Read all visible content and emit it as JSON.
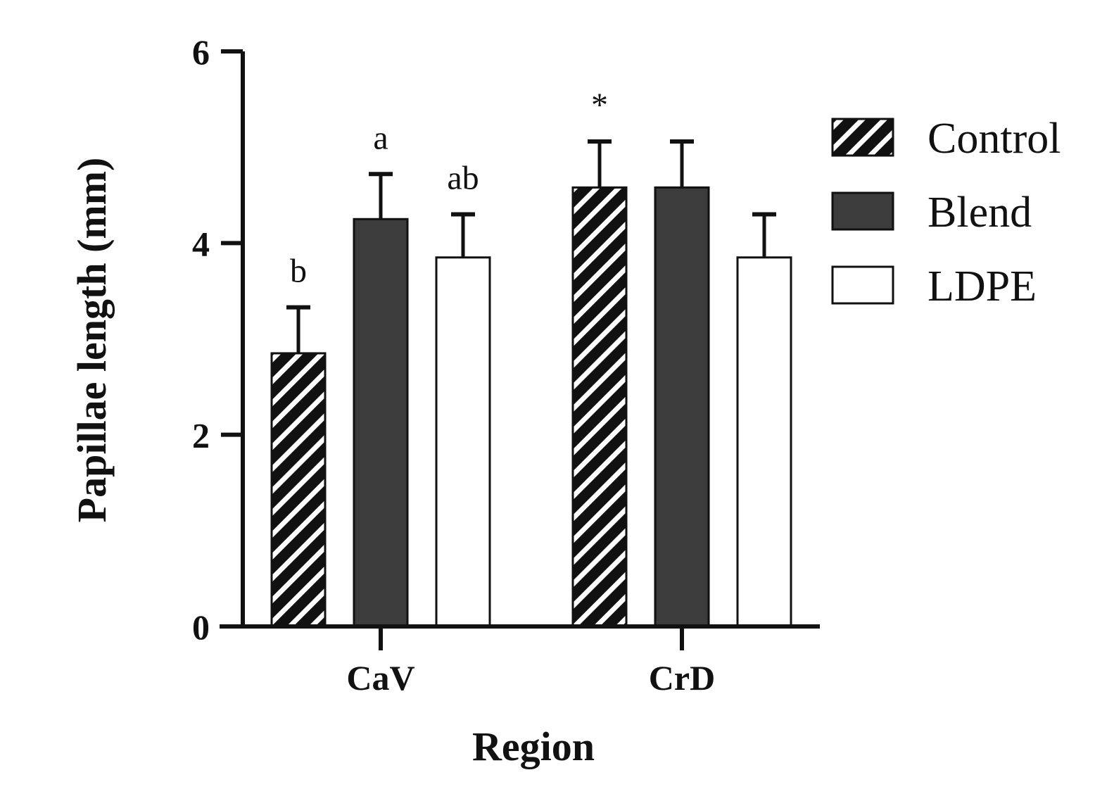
{
  "chart_data": {
    "type": "bar",
    "title": "",
    "xlabel": "Region",
    "ylabel": "Papillae length (mm)",
    "ylim": [
      0,
      6
    ],
    "yticks": [
      0,
      2,
      4,
      6
    ],
    "categories": [
      "CaV",
      "CrD"
    ],
    "series": [
      {
        "name": "Control",
        "fill": "hatched",
        "color": "#111111",
        "values": [
          2.85,
          4.58
        ],
        "errors": [
          0.48,
          0.48
        ],
        "annotations": [
          "b",
          "*"
        ]
      },
      {
        "name": "Blend",
        "fill": "solid",
        "color": "#3c3c3c",
        "values": [
          4.25,
          4.58
        ],
        "errors": [
          0.47,
          0.48
        ],
        "annotations": [
          "a",
          ""
        ]
      },
      {
        "name": "LDPE",
        "fill": "empty",
        "color": "#ffffff",
        "values": [
          3.85,
          3.85
        ],
        "errors": [
          0.45,
          0.45
        ],
        "annotations": [
          "ab",
          ""
        ]
      }
    ],
    "legend_position": "right",
    "grid": false
  }
}
